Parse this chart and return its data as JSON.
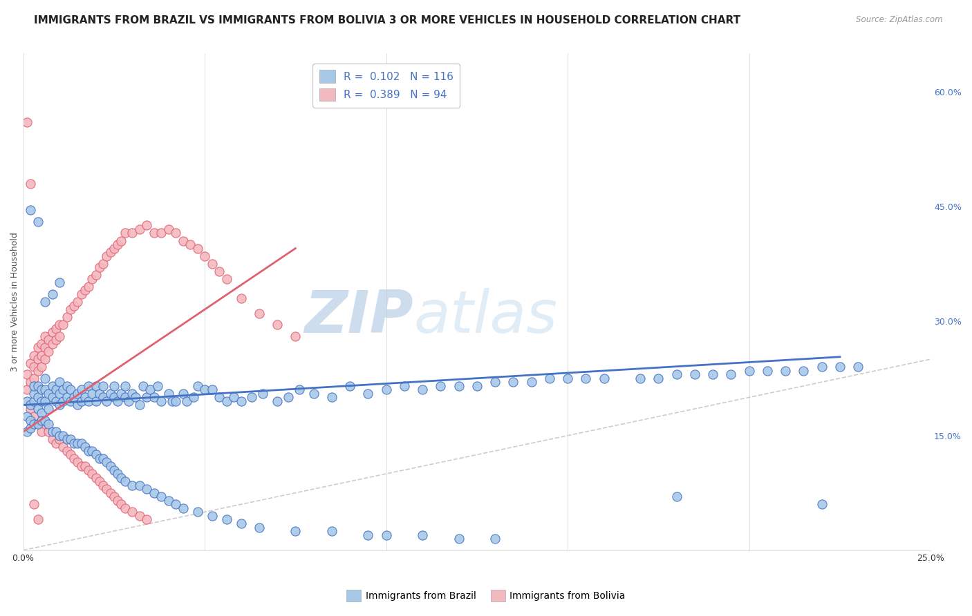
{
  "title": "IMMIGRANTS FROM BRAZIL VS IMMIGRANTS FROM BOLIVIA 3 OR MORE VEHICLES IN HOUSEHOLD CORRELATION CHART",
  "source": "Source: ZipAtlas.com",
  "ylabel": "3 or more Vehicles in Household",
  "xlim": [
    0.0,
    0.25
  ],
  "ylim": [
    0.0,
    0.65
  ],
  "xticks": [
    0.0,
    0.05,
    0.1,
    0.15,
    0.2,
    0.25
  ],
  "xticklabels": [
    "0.0%",
    "",
    "",
    "",
    "",
    "25.0%"
  ],
  "yticks_right": [
    0.15,
    0.3,
    0.45,
    0.6
  ],
  "ytick_labels_right": [
    "15.0%",
    "30.0%",
    "45.0%",
    "60.0%"
  ],
  "brazil_color": "#a8c8e8",
  "bolivia_color": "#f4b8c0",
  "brazil_edge_color": "#4472c4",
  "bolivia_edge_color": "#e06070",
  "brazil_line_color": "#4472c4",
  "bolivia_line_color": "#e06070",
  "diagonal_color": "#c0c0c0",
  "R_brazil": 0.102,
  "N_brazil": 116,
  "R_bolivia": 0.389,
  "N_bolivia": 94,
  "legend_label_brazil": "Immigrants from Brazil",
  "legend_label_bolivia": "Immigrants from Bolivia",
  "brazil_scatter_x": [
    0.001,
    0.001,
    0.002,
    0.002,
    0.003,
    0.003,
    0.003,
    0.004,
    0.004,
    0.004,
    0.005,
    0.005,
    0.005,
    0.006,
    0.006,
    0.006,
    0.007,
    0.007,
    0.008,
    0.008,
    0.009,
    0.009,
    0.01,
    0.01,
    0.01,
    0.011,
    0.011,
    0.012,
    0.012,
    0.013,
    0.013,
    0.014,
    0.015,
    0.015,
    0.016,
    0.016,
    0.017,
    0.018,
    0.018,
    0.019,
    0.02,
    0.02,
    0.021,
    0.022,
    0.022,
    0.023,
    0.024,
    0.025,
    0.025,
    0.026,
    0.027,
    0.028,
    0.028,
    0.029,
    0.03,
    0.031,
    0.032,
    0.033,
    0.034,
    0.035,
    0.036,
    0.037,
    0.038,
    0.04,
    0.041,
    0.042,
    0.044,
    0.045,
    0.047,
    0.048,
    0.05,
    0.052,
    0.054,
    0.056,
    0.058,
    0.06,
    0.063,
    0.066,
    0.07,
    0.073,
    0.076,
    0.08,
    0.085,
    0.09,
    0.095,
    0.1,
    0.105,
    0.11,
    0.115,
    0.12,
    0.125,
    0.13,
    0.135,
    0.14,
    0.145,
    0.15,
    0.155,
    0.16,
    0.17,
    0.175,
    0.18,
    0.185,
    0.19,
    0.195,
    0.2,
    0.205,
    0.21,
    0.215,
    0.22,
    0.225,
    0.23,
    0.002,
    0.004,
    0.006,
    0.008,
    0.01
  ],
  "brazil_scatter_y": [
    0.195,
    0.175,
    0.19,
    0.17,
    0.195,
    0.205,
    0.215,
    0.185,
    0.2,
    0.215,
    0.195,
    0.21,
    0.18,
    0.195,
    0.21,
    0.225,
    0.205,
    0.185,
    0.2,
    0.215,
    0.195,
    0.21,
    0.19,
    0.205,
    0.22,
    0.195,
    0.21,
    0.2,
    0.215,
    0.195,
    0.21,
    0.2,
    0.19,
    0.205,
    0.195,
    0.21,
    0.2,
    0.215,
    0.195,
    0.205,
    0.195,
    0.215,
    0.205,
    0.2,
    0.215,
    0.195,
    0.205,
    0.2,
    0.215,
    0.195,
    0.205,
    0.2,
    0.215,
    0.195,
    0.205,
    0.2,
    0.19,
    0.215,
    0.2,
    0.21,
    0.2,
    0.215,
    0.195,
    0.205,
    0.195,
    0.195,
    0.205,
    0.195,
    0.2,
    0.215,
    0.21,
    0.21,
    0.2,
    0.195,
    0.2,
    0.195,
    0.2,
    0.205,
    0.195,
    0.2,
    0.21,
    0.205,
    0.2,
    0.215,
    0.205,
    0.21,
    0.215,
    0.21,
    0.215,
    0.215,
    0.215,
    0.22,
    0.22,
    0.22,
    0.225,
    0.225,
    0.225,
    0.225,
    0.225,
    0.225,
    0.23,
    0.23,
    0.23,
    0.23,
    0.235,
    0.235,
    0.235,
    0.235,
    0.24,
    0.24,
    0.24,
    0.445,
    0.43,
    0.325,
    0.335,
    0.35
  ],
  "brazil_scatter_y_outliers": [
    0.155,
    0.16,
    0.165,
    0.165,
    0.17,
    0.17,
    0.165,
    0.155,
    0.155,
    0.15,
    0.15,
    0.145,
    0.145,
    0.14,
    0.14,
    0.14,
    0.135,
    0.13,
    0.13,
    0.125,
    0.12,
    0.12,
    0.115,
    0.11,
    0.105,
    0.1,
    0.095,
    0.09,
    0.085,
    0.085,
    0.08,
    0.075,
    0.07,
    0.065,
    0.06,
    0.055,
    0.05,
    0.045,
    0.04,
    0.035,
    0.03,
    0.025,
    0.025,
    0.02,
    0.02,
    0.02,
    0.015,
    0.015,
    0.07,
    0.06
  ],
  "brazil_scatter_x_outliers": [
    0.001,
    0.002,
    0.003,
    0.004,
    0.005,
    0.006,
    0.007,
    0.008,
    0.009,
    0.01,
    0.011,
    0.012,
    0.013,
    0.014,
    0.015,
    0.016,
    0.017,
    0.018,
    0.019,
    0.02,
    0.021,
    0.022,
    0.023,
    0.024,
    0.025,
    0.026,
    0.027,
    0.028,
    0.03,
    0.032,
    0.034,
    0.036,
    0.038,
    0.04,
    0.042,
    0.044,
    0.048,
    0.052,
    0.056,
    0.06,
    0.065,
    0.075,
    0.085,
    0.095,
    0.1,
    0.11,
    0.12,
    0.13,
    0.18,
    0.22
  ],
  "bolivia_scatter_x": [
    0.001,
    0.001,
    0.002,
    0.002,
    0.003,
    0.003,
    0.003,
    0.004,
    0.004,
    0.004,
    0.005,
    0.005,
    0.005,
    0.006,
    0.006,
    0.006,
    0.007,
    0.007,
    0.008,
    0.008,
    0.009,
    0.009,
    0.01,
    0.01,
    0.011,
    0.012,
    0.013,
    0.014,
    0.015,
    0.016,
    0.017,
    0.018,
    0.019,
    0.02,
    0.021,
    0.022,
    0.023,
    0.024,
    0.025,
    0.026,
    0.027,
    0.028,
    0.03,
    0.032,
    0.034,
    0.036,
    0.038,
    0.04,
    0.042,
    0.044,
    0.046,
    0.048,
    0.05,
    0.052,
    0.054,
    0.056,
    0.06,
    0.065,
    0.07,
    0.075,
    0.002,
    0.003,
    0.004,
    0.005,
    0.006,
    0.007,
    0.008,
    0.009,
    0.01,
    0.011,
    0.012,
    0.013,
    0.014,
    0.015,
    0.016,
    0.017,
    0.018,
    0.019,
    0.02,
    0.021,
    0.022,
    0.023,
    0.024,
    0.025,
    0.026,
    0.027,
    0.028,
    0.03,
    0.032,
    0.034,
    0.001,
    0.002,
    0.003,
    0.004
  ],
  "bolivia_scatter_y": [
    0.21,
    0.23,
    0.22,
    0.245,
    0.225,
    0.24,
    0.255,
    0.235,
    0.25,
    0.265,
    0.24,
    0.255,
    0.27,
    0.25,
    0.265,
    0.28,
    0.26,
    0.275,
    0.27,
    0.285,
    0.275,
    0.29,
    0.28,
    0.295,
    0.295,
    0.305,
    0.315,
    0.32,
    0.325,
    0.335,
    0.34,
    0.345,
    0.355,
    0.36,
    0.37,
    0.375,
    0.385,
    0.39,
    0.395,
    0.4,
    0.405,
    0.415,
    0.415,
    0.42,
    0.425,
    0.415,
    0.415,
    0.42,
    0.415,
    0.405,
    0.4,
    0.395,
    0.385,
    0.375,
    0.365,
    0.355,
    0.33,
    0.31,
    0.295,
    0.28,
    0.185,
    0.175,
    0.165,
    0.155,
    0.165,
    0.155,
    0.145,
    0.14,
    0.145,
    0.135,
    0.13,
    0.125,
    0.12,
    0.115,
    0.11,
    0.11,
    0.105,
    0.1,
    0.095,
    0.09,
    0.085,
    0.08,
    0.075,
    0.07,
    0.065,
    0.06,
    0.055,
    0.05,
    0.045,
    0.04,
    0.56,
    0.48,
    0.06,
    0.04
  ],
  "watermark_zip": "ZIP",
  "watermark_atlas": "atlas",
  "grid_color": "#e0e0e0",
  "background_color": "#ffffff",
  "title_fontsize": 11,
  "axis_label_fontsize": 9,
  "tick_fontsize": 9,
  "legend_r_color": "#4472c4",
  "legend_n_color": "#4472c4"
}
